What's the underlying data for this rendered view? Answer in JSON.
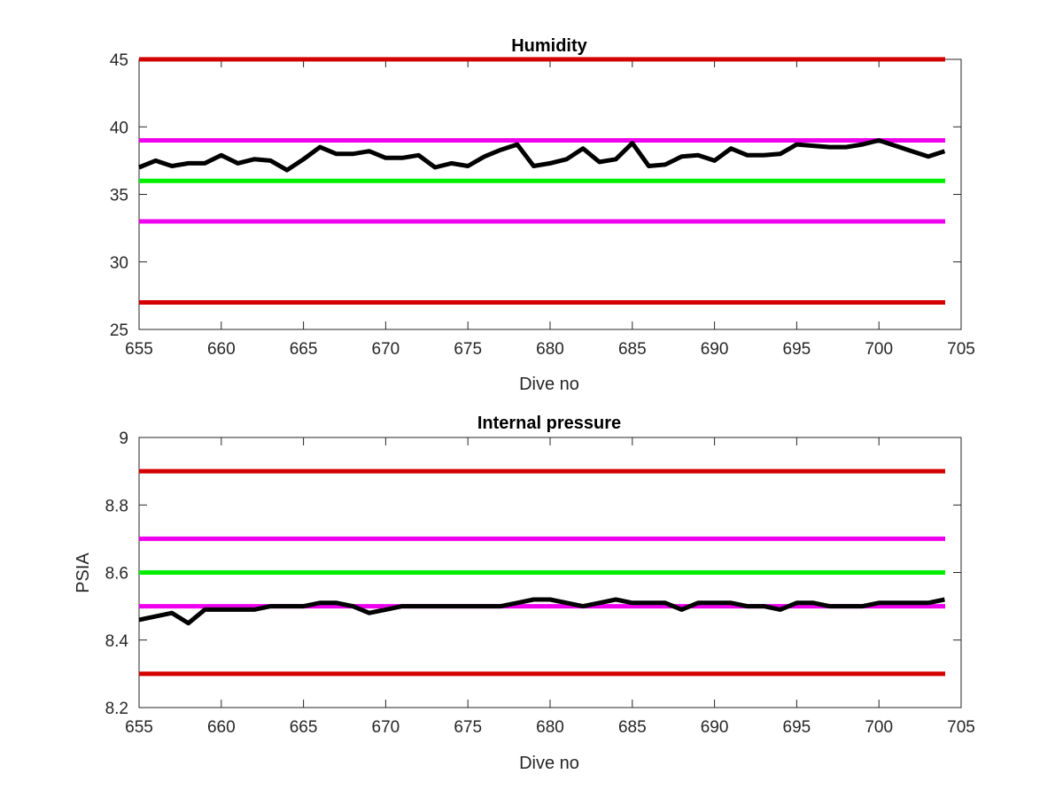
{
  "chart_data": [
    {
      "type": "line",
      "title": "Humidity",
      "xlabel": "Dive no",
      "ylabel": "",
      "xlim": [
        655,
        705
      ],
      "ylim": [
        25,
        45
      ],
      "xticks": [
        "655",
        "660",
        "665",
        "670",
        "675",
        "680",
        "685",
        "690",
        "695",
        "700",
        "705"
      ],
      "yticks": [
        "25",
        "30",
        "35",
        "40",
        "45"
      ],
      "grid": false,
      "reference_lines": [
        {
          "y": 45,
          "color": "#d40000"
        },
        {
          "y": 39,
          "color": "#ee00ee"
        },
        {
          "y": 36,
          "color": "#00ee00"
        },
        {
          "y": 33,
          "color": "#ee00ee"
        },
        {
          "y": 27,
          "color": "#d40000"
        }
      ],
      "series": [
        {
          "color": "#000000",
          "x": [
            655,
            656,
            657,
            658,
            659,
            660,
            661,
            662,
            663,
            664,
            665,
            666,
            667,
            668,
            669,
            670,
            671,
            672,
            673,
            674,
            675,
            676,
            677,
            678,
            679,
            680,
            681,
            682,
            683,
            684,
            685,
            686,
            687,
            688,
            689,
            690,
            691,
            692,
            693,
            694,
            695,
            696,
            697,
            698,
            699,
            700,
            701,
            702,
            703,
            704
          ],
          "y": [
            37.0,
            37.5,
            37.1,
            37.3,
            37.3,
            37.9,
            37.3,
            37.6,
            37.5,
            36.8,
            37.6,
            38.5,
            38.0,
            38.0,
            38.2,
            37.7,
            37.7,
            37.9,
            37.0,
            37.3,
            37.1,
            37.8,
            38.3,
            38.7,
            37.1,
            37.3,
            37.6,
            38.4,
            37.4,
            37.6,
            38.8,
            37.1,
            37.2,
            37.8,
            37.9,
            37.5,
            38.4,
            37.9,
            37.9,
            38.0,
            38.7,
            38.6,
            38.5,
            38.5,
            38.7,
            39.0,
            38.6,
            38.2,
            37.8,
            38.2
          ]
        }
      ]
    },
    {
      "type": "line",
      "title": "Internal pressure",
      "xlabel": "Dive no",
      "ylabel": "PSIA",
      "xlim": [
        655,
        705
      ],
      "ylim": [
        8.2,
        9
      ],
      "xticks": [
        "655",
        "660",
        "665",
        "670",
        "675",
        "680",
        "685",
        "690",
        "695",
        "700",
        "705"
      ],
      "yticks": [
        "8.2",
        "8.4",
        "8.6",
        "8.8",
        "9"
      ],
      "grid": false,
      "reference_lines": [
        {
          "y": 8.9,
          "color": "#d40000"
        },
        {
          "y": 8.7,
          "color": "#ee00ee"
        },
        {
          "y": 8.6,
          "color": "#00ee00"
        },
        {
          "y": 8.5,
          "color": "#ee00ee"
        },
        {
          "y": 8.3,
          "color": "#d40000"
        }
      ],
      "series": [
        {
          "color": "#000000",
          "x": [
            655,
            656,
            657,
            658,
            659,
            660,
            661,
            662,
            663,
            664,
            665,
            666,
            667,
            668,
            669,
            670,
            671,
            672,
            673,
            674,
            675,
            676,
            677,
            678,
            679,
            680,
            681,
            682,
            683,
            684,
            685,
            686,
            687,
            688,
            689,
            690,
            691,
            692,
            693,
            694,
            695,
            696,
            697,
            698,
            699,
            700,
            701,
            702,
            703,
            704
          ],
          "y": [
            8.46,
            8.47,
            8.48,
            8.45,
            8.49,
            8.49,
            8.49,
            8.49,
            8.5,
            8.5,
            8.5,
            8.51,
            8.51,
            8.5,
            8.48,
            8.49,
            8.5,
            8.5,
            8.5,
            8.5,
            8.5,
            8.5,
            8.5,
            8.51,
            8.52,
            8.52,
            8.51,
            8.5,
            8.51,
            8.52,
            8.51,
            8.51,
            8.51,
            8.49,
            8.51,
            8.51,
            8.51,
            8.5,
            8.5,
            8.49,
            8.51,
            8.51,
            8.5,
            8.5,
            8.5,
            8.51,
            8.51,
            8.51,
            8.51,
            8.52
          ]
        }
      ]
    }
  ]
}
